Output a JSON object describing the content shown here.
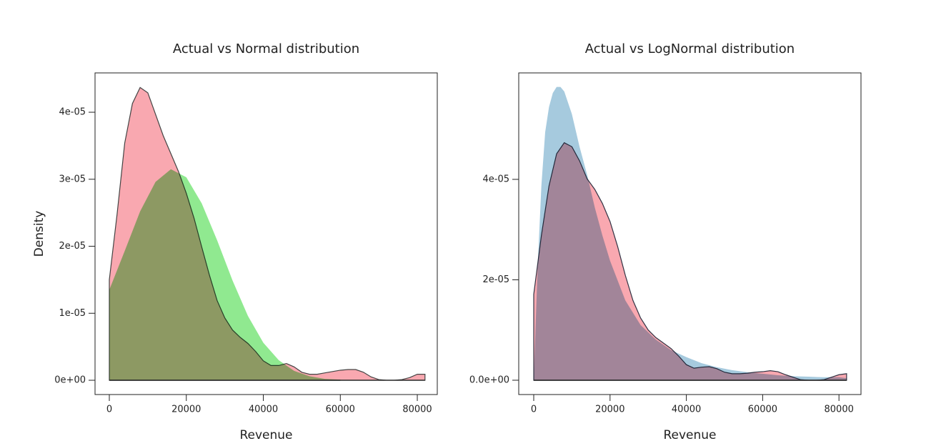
{
  "chart_data": [
    {
      "type": "area",
      "title": "Actual vs Normal distribution",
      "xlabel": "Revenue",
      "ylabel": "Density",
      "xlim": [
        -3712,
        85190
      ],
      "ylim": [
        -2.13e-06,
        4.587e-05
      ],
      "xticks": [
        0,
        20000,
        40000,
        60000,
        80000
      ],
      "yticks": [
        {
          "value": 0,
          "label": "0e+00"
        },
        {
          "value": 1e-05,
          "label": "1e-05"
        },
        {
          "value": 2e-05,
          "label": "2e-05"
        },
        {
          "value": 3e-05,
          "label": "3e-05"
        },
        {
          "value": 4e-05,
          "label": "4e-05"
        }
      ],
      "series": [
        {
          "color": "#f9a8b0",
          "outline": "#444444",
          "x": [
            0,
            2000,
            4000,
            6000,
            8000,
            10000,
            12000,
            14000,
            16000,
            18000,
            20000,
            22000,
            24000,
            26000,
            28000,
            30000,
            32000,
            34000,
            36000,
            38000,
            40000,
            42000,
            44000,
            46000,
            48000,
            50000,
            52000,
            54000,
            56000,
            58000,
            60000,
            62000,
            64000,
            66000,
            68000,
            70000,
            72000,
            74000,
            76000,
            78000,
            80000,
            82000
          ],
          "values": [
            1.5e-05,
            2.47e-05,
            3.54e-05,
            4.13e-05,
            4.37e-05,
            4.29e-05,
            3.97e-05,
            3.65e-05,
            3.38e-05,
            3.11e-05,
            2.79e-05,
            2.42e-05,
            1.99e-05,
            1.57e-05,
            1.19e-05,
            9.3e-06,
            7.5e-06,
            6.4e-06,
            5.5e-06,
            4.3e-06,
            2.9e-06,
            2.2e-06,
            2.2e-06,
            2.5e-06,
            2e-06,
            1.2e-06,
            9e-07,
            9e-07,
            1.1e-06,
            1.3e-06,
            1.5e-06,
            1.6e-06,
            1.6e-06,
            1.2e-06,
            5e-07,
            1e-07,
            0,
            0,
            1e-07,
            4e-07,
            9e-07,
            9e-07
          ]
        },
        {
          "color": "#90e990",
          "x": [
            0,
            4000,
            8000,
            12000,
            16000,
            20000,
            24000,
            28000,
            32000,
            36000,
            40000,
            44000,
            48000,
            52000,
            56000,
            60000
          ],
          "values": [
            1.35e-05,
            1.93e-05,
            2.52e-05,
            2.96e-05,
            3.15e-05,
            3.03e-05,
            2.64e-05,
            2.09e-05,
            1.49e-05,
            9.6e-06,
            5.6e-06,
            3e-06,
            1.4e-06,
            6e-07,
            2e-07,
            1e-07
          ]
        }
      ]
    },
    {
      "type": "area",
      "title": "Actual vs LogNormal distribution",
      "xlabel": "Revenue",
      "xlim": [
        -3933,
        85770
      ],
      "ylim": [
        -2.85e-06,
        6.12e-05
      ],
      "xticks": [
        0,
        20000,
        40000,
        60000,
        80000
      ],
      "yticks": [
        {
          "value": 0,
          "label": "0.0e+00"
        },
        {
          "value": 2e-05,
          "label": "2e-05"
        },
        {
          "value": 4e-05,
          "label": "4e-05"
        }
      ],
      "series": [
        {
          "color": "#a6cade",
          "x": [
            0,
            1000,
            2000,
            3000,
            4000,
            5000,
            6000,
            7000,
            8000,
            10000,
            12000,
            14000,
            16000,
            18000,
            20000,
            24000,
            28000,
            32000,
            36000,
            40000,
            44000,
            48000,
            52000,
            56000,
            60000,
            64000,
            68000,
            72000,
            76000,
            80000,
            82000
          ],
          "values": [
            0,
            2.2e-05,
            3.87e-05,
            4.94e-05,
            5.44e-05,
            5.72e-05,
            5.84e-05,
            5.84e-05,
            5.75e-05,
            5.3e-05,
            4.65e-05,
            4.09e-05,
            3.44e-05,
            2.88e-05,
            2.38e-05,
            1.59e-05,
            1.1e-05,
            8.1e-06,
            6e-06,
            4.6e-06,
            3.4e-06,
            2.6e-06,
            2e-06,
            1.6e-06,
            1.3e-06,
            1e-06,
            8e-07,
            7e-07,
            6e-07,
            6e-07,
            4e-07
          ]
        },
        {
          "color": "#f9a8b0",
          "outline": "#333344",
          "x": [
            0,
            2000,
            4000,
            6000,
            8000,
            10000,
            12000,
            14000,
            16000,
            18000,
            20000,
            22000,
            24000,
            26000,
            28000,
            30000,
            32000,
            34000,
            36000,
            38000,
            40000,
            42000,
            44000,
            46000,
            48000,
            50000,
            52000,
            54000,
            56000,
            58000,
            60000,
            62000,
            64000,
            66000,
            68000,
            70000,
            72000,
            74000,
            76000,
            78000,
            80000,
            82000
          ],
          "values": [
            1.71e-05,
            2.88e-05,
            3.87e-05,
            4.51e-05,
            4.73e-05,
            4.65e-05,
            4.37e-05,
            4.01e-05,
            3.8e-05,
            3.52e-05,
            3.16e-05,
            2.66e-05,
            2.09e-05,
            1.59e-05,
            1.24e-05,
            1e-05,
            8.5e-06,
            7.4e-06,
            6.3e-06,
            4.8e-06,
            3.1e-06,
            2.4e-06,
            2.6e-06,
            2.7e-06,
            2.3e-06,
            1.6e-06,
            1.3e-06,
            1.3e-06,
            1.4e-06,
            1.6e-06,
            1.7e-06,
            1.9e-06,
            1.7e-06,
            1.1e-06,
            6e-07,
            1e-07,
            0,
            0,
            1e-07,
            6e-07,
            1.1e-06,
            1.3e-06
          ]
        }
      ]
    }
  ]
}
